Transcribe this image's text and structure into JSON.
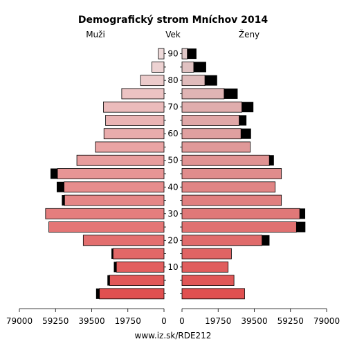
{
  "chart_data": {
    "type": "bar",
    "title": "Demografický strom Mníchov 2014",
    "left_label": "Muži",
    "center_label": "Vek",
    "right_label": "Ženy",
    "footer": "www.iz.sk/RDE212",
    "age_ticks": [
      "10",
      "20",
      "30",
      "40",
      "50",
      "60",
      "70",
      "80",
      "90"
    ],
    "x_ticks_left": [
      "79000",
      "59250",
      "39500",
      "19750",
      "0"
    ],
    "x_ticks_right": [
      "0",
      "19750",
      "39500",
      "59250",
      "79000"
    ],
    "xlim": [
      0,
      79000
    ],
    "age_groups": [
      "0-4",
      "5-9",
      "10-14",
      "15-19",
      "20-24",
      "25-29",
      "30-34",
      "35-39",
      "40-44",
      "45-49",
      "50-54",
      "55-59",
      "60-64",
      "65-69",
      "70-74",
      "75-79",
      "80-84",
      "85-89",
      "90-94"
    ],
    "series": [
      {
        "name": "Muži",
        "values": [
          35300,
          29700,
          26000,
          27800,
          44100,
          62900,
          64700,
          54300,
          54600,
          58200,
          47600,
          37500,
          32800,
          31900,
          33100,
          23100,
          12800,
          6600,
          3100
        ]
      },
      {
        "name": "Muži (cudzinci)",
        "values": [
          1800,
          1200,
          1400,
          900,
          0,
          0,
          0,
          1500,
          4000,
          3800,
          0,
          0,
          0,
          0,
          0,
          0,
          0,
          0,
          0
        ]
      },
      {
        "name": "Ženy",
        "values": [
          34200,
          28400,
          25200,
          27000,
          43700,
          62500,
          64300,
          54300,
          50900,
          54300,
          47700,
          37300,
          32200,
          31200,
          32700,
          23000,
          12500,
          6400,
          2900
        ]
      },
      {
        "name": "Ženy (cudzinci)",
        "values": [
          0,
          0,
          0,
          0,
          4100,
          4900,
          3000,
          0,
          0,
          0,
          2500,
          0,
          5500,
          4000,
          6300,
          7400,
          6700,
          6800,
          5000
        ]
      }
    ],
    "colors": {
      "male_young": "#e05050",
      "male_old": "#eedada",
      "female_young": "#e05050",
      "female_old": "#e0c8c8",
      "foreign": "#000000",
      "outline": "#000000"
    }
  }
}
